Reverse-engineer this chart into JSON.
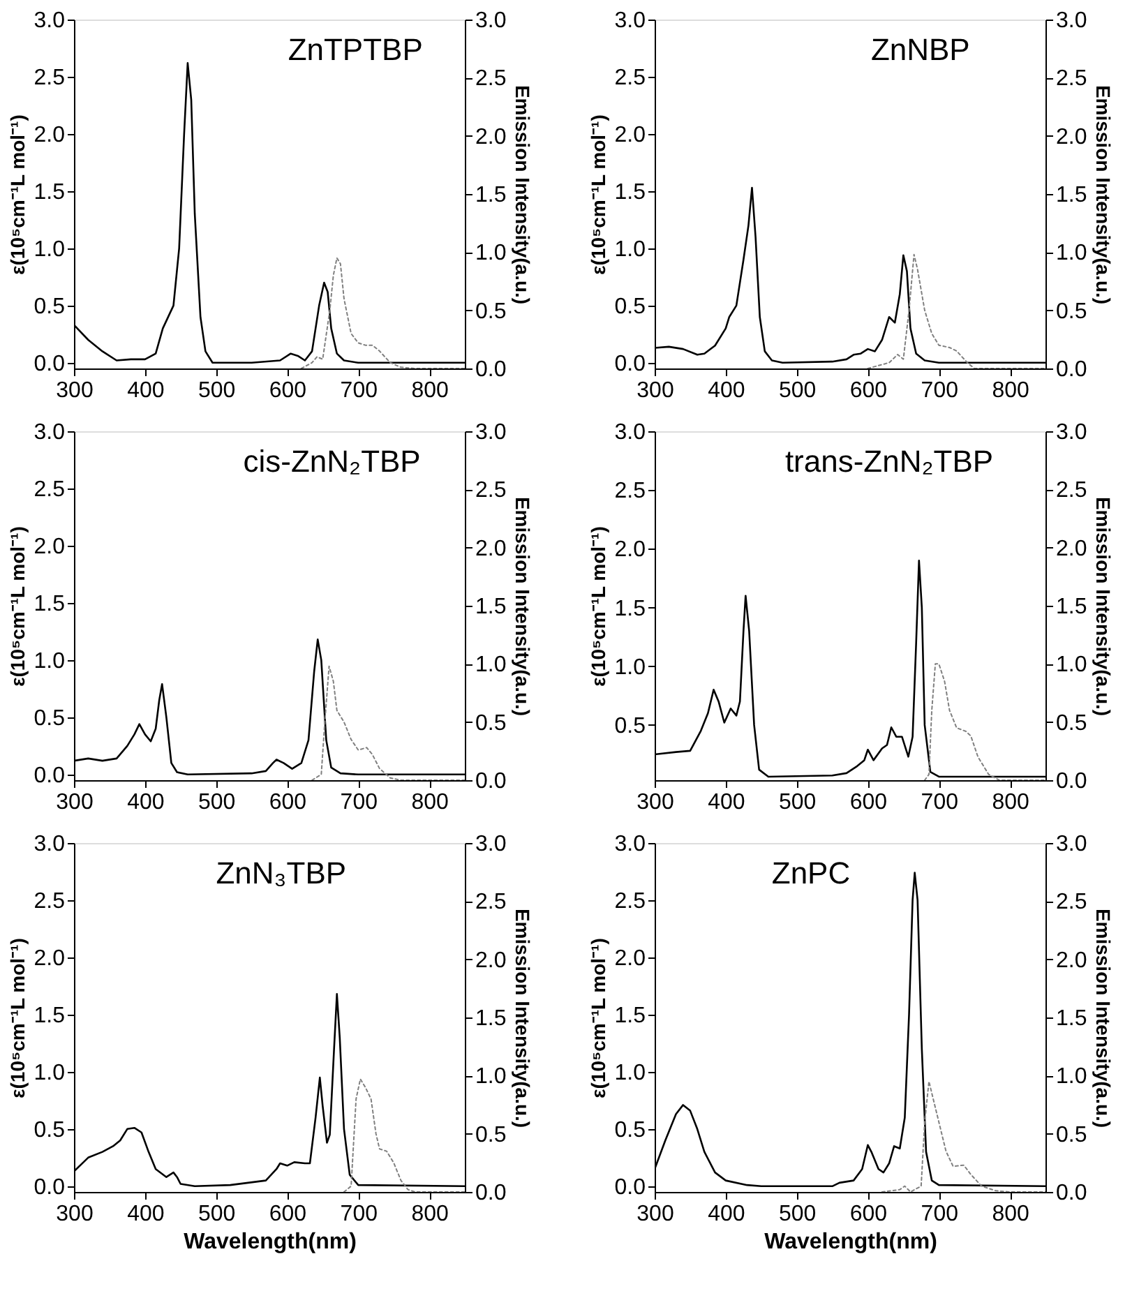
{
  "chart_data": [
    {
      "type": "line",
      "title": "ZnTPTBP",
      "ylabel": "ε(10⁵cm⁻¹L mol⁻¹)",
      "y2label": "Emission Intensity(a.u.)",
      "xlim": [
        300,
        850
      ],
      "xticks": [
        300,
        400,
        500,
        600,
        700,
        800
      ],
      "ylim": [
        -0.05,
        3.0
      ],
      "yticks": [
        {
          "value": 0,
          "label": "0.0"
        },
        0.5,
        {
          "value": 1,
          "label": "1.0"
        },
        1.5,
        {
          "value": 2,
          "label": "2.0"
        },
        2.5,
        {
          "value": 3,
          "label": "3.0"
        }
      ],
      "y2lim": [
        0.0,
        3.0
      ],
      "y2ticks": [
        {
          "value": 0,
          "label": "0.0"
        },
        0.5,
        {
          "value": 1,
          "label": "1.0"
        },
        1.5,
        {
          "value": 2,
          "label": "2.0"
        },
        2.5,
        {
          "value": 3,
          "label": "3.0"
        }
      ],
      "grid": false,
      "series": [
        {
          "color": "#000000",
          "line_style": "solid",
          "x": [
            300,
            320,
            340,
            360,
            380,
            400,
            415,
            425,
            440,
            448,
            455,
            460,
            465,
            470,
            478,
            485,
            495,
            550,
            590,
            605,
            615,
            625,
            635,
            645,
            652,
            657,
            662,
            670,
            680,
            700,
            850
          ],
          "values": [
            0.33,
            0.2,
            0.1,
            0.02,
            0.03,
            0.03,
            0.08,
            0.3,
            0.5,
            1.0,
            2.0,
            2.62,
            2.3,
            1.3,
            0.4,
            0.1,
            0.0,
            0.0,
            0.02,
            0.08,
            0.06,
            0.02,
            0.1,
            0.5,
            0.7,
            0.62,
            0.3,
            0.08,
            0.02,
            0.0,
            0.0
          ]
        },
        {
          "color": "#808080",
          "line_style": "dotted",
          "axis": "y2",
          "x": [
            620,
            635,
            642,
            650,
            660,
            665,
            670,
            675,
            680,
            690,
            700,
            710,
            720,
            730,
            745,
            760,
            780,
            850
          ],
          "values": [
            0.0,
            0.05,
            0.1,
            0.08,
            0.5,
            0.8,
            0.95,
            0.9,
            0.6,
            0.3,
            0.22,
            0.2,
            0.2,
            0.15,
            0.05,
            0.01,
            0.0,
            0.0
          ]
        }
      ]
    },
    {
      "type": "line",
      "title": "ZnNBP",
      "ylabel": "ε(10⁵cm⁻¹L mol⁻¹)",
      "y2label": "Emission Intensity(a.u.)",
      "xlim": [
        300,
        850
      ],
      "xticks": [
        300,
        400,
        500,
        600,
        700,
        800
      ],
      "ylim": [
        -0.05,
        3.0
      ],
      "yticks": [
        {
          "value": 0,
          "label": "0.0"
        },
        0.5,
        {
          "value": 1,
          "label": "1.0"
        },
        1.5,
        {
          "value": 2,
          "label": "2.0"
        },
        2.5,
        {
          "value": 3,
          "label": "3.0"
        }
      ],
      "y2lim": [
        0.0,
        3.0
      ],
      "y2ticks": [
        {
          "value": 0,
          "label": "0.0"
        },
        0.5,
        {
          "value": 1,
          "label": "1.0"
        },
        1.5,
        {
          "value": 2,
          "label": "2.0"
        },
        2.5,
        {
          "value": 3,
          "label": "3.0"
        }
      ],
      "grid": false,
      "series": [
        {
          "color": "#000000",
          "line_style": "solid",
          "x": [
            300,
            320,
            340,
            360,
            370,
            385,
            400,
            405,
            415,
            425,
            432,
            437,
            442,
            448,
            455,
            465,
            480,
            550,
            570,
            580,
            590,
            600,
            610,
            620,
            630,
            638,
            645,
            650,
            655,
            660,
            668,
            680,
            700,
            850
          ],
          "values": [
            0.13,
            0.14,
            0.12,
            0.07,
            0.08,
            0.15,
            0.3,
            0.4,
            0.5,
            0.9,
            1.2,
            1.53,
            1.1,
            0.4,
            0.1,
            0.02,
            0.0,
            0.01,
            0.03,
            0.07,
            0.08,
            0.12,
            0.1,
            0.2,
            0.4,
            0.35,
            0.6,
            0.94,
            0.8,
            0.3,
            0.08,
            0.02,
            0.0,
            0.0
          ]
        },
        {
          "color": "#808080",
          "line_style": "dotted",
          "axis": "y2",
          "x": [
            600,
            630,
            642,
            650,
            658,
            665,
            670,
            680,
            690,
            700,
            715,
            725,
            740,
            750,
            850
          ],
          "values": [
            0.0,
            0.05,
            0.12,
            0.08,
            0.5,
            0.98,
            0.85,
            0.5,
            0.3,
            0.2,
            0.18,
            0.15,
            0.05,
            0.0,
            0.0
          ]
        }
      ]
    },
    {
      "type": "line",
      "title": "cis-ZnN₂TBP",
      "ylabel": "ε(10⁵cm⁻¹L mol⁻¹)",
      "y2label": "Emission Intensity(a.u.)",
      "xlim": [
        300,
        850
      ],
      "xticks": [
        300,
        400,
        500,
        600,
        700,
        800
      ],
      "ylim": [
        -0.05,
        3.0
      ],
      "yticks": [
        {
          "value": 0,
          "label": "0.0"
        },
        0.5,
        {
          "value": 1,
          "label": "1.0"
        },
        1.5,
        {
          "value": 2,
          "label": "2.0"
        },
        2.5,
        {
          "value": 3,
          "label": "3.0"
        }
      ],
      "y2lim": [
        0.0,
        3.0
      ],
      "y2ticks": [
        {
          "value": 0,
          "label": "0.0"
        },
        0.5,
        {
          "value": 1,
          "label": "1.0"
        },
        1.5,
        {
          "value": 2,
          "label": "2.0"
        },
        2.5,
        {
          "value": 3,
          "label": "3.0"
        }
      ],
      "grid": false,
      "series": [
        {
          "color": "#000000",
          "line_style": "solid",
          "x": [
            300,
            320,
            340,
            360,
            375,
            385,
            392,
            400,
            408,
            415,
            420,
            424,
            430,
            437,
            445,
            460,
            550,
            570,
            580,
            585,
            595,
            607,
            620,
            630,
            638,
            643,
            648,
            655,
            662,
            675,
            700,
            850
          ],
          "values": [
            0.12,
            0.14,
            0.12,
            0.14,
            0.25,
            0.35,
            0.44,
            0.35,
            0.29,
            0.4,
            0.65,
            0.79,
            0.5,
            0.1,
            0.02,
            0.0,
            0.01,
            0.03,
            0.1,
            0.13,
            0.1,
            0.05,
            0.1,
            0.3,
            0.9,
            1.18,
            1.0,
            0.3,
            0.06,
            0.01,
            0.0,
            0.0
          ]
        },
        {
          "color": "#808080",
          "line_style": "dotted",
          "axis": "y2",
          "x": [
            635,
            648,
            653,
            659,
            665,
            670,
            680,
            690,
            700,
            712,
            720,
            730,
            745,
            760,
            850
          ],
          "values": [
            0.0,
            0.05,
            0.5,
            0.98,
            0.85,
            0.6,
            0.5,
            0.35,
            0.26,
            0.28,
            0.22,
            0.1,
            0.02,
            0.0,
            0.0
          ]
        }
      ]
    },
    {
      "type": "line",
      "title": "trans-ZnN₂TBP",
      "ylabel": "ε(10⁵cm⁻¹L mol⁻¹)",
      "y2label": "Emission Intensity(a.u.)",
      "xlim": [
        300,
        850
      ],
      "xticks": [
        300,
        400,
        500,
        600,
        700,
        800
      ],
      "ylim": [
        0.03,
        3.0
      ],
      "yticks": [
        0.5,
        {
          "value": 1,
          "label": "1.0"
        },
        1.5,
        {
          "value": 2,
          "label": "2.0"
        },
        2.5,
        {
          "value": 3,
          "label": "3.0"
        }
      ],
      "y2lim": [
        0.0,
        3.0
      ],
      "y2ticks": [
        {
          "value": 0,
          "label": "0.0"
        },
        0.5,
        {
          "value": 1,
          "label": "1.0"
        },
        1.5,
        {
          "value": 2,
          "label": "2.0"
        },
        2.5,
        {
          "value": 3,
          "label": "3.0"
        }
      ],
      "grid": false,
      "series": [
        {
          "color": "#000000",
          "line_style": "solid",
          "x": [
            300,
            330,
            350,
            365,
            375,
            383,
            390,
            398,
            407,
            415,
            420,
            425,
            428,
            433,
            440,
            447,
            460,
            550,
            570,
            585,
            595,
            600,
            608,
            620,
            627,
            633,
            640,
            648,
            657,
            663,
            668,
            672,
            676,
            680,
            688,
            700,
            850
          ],
          "values": [
            0.25,
            0.27,
            0.28,
            0.45,
            0.6,
            0.8,
            0.7,
            0.52,
            0.64,
            0.58,
            0.7,
            1.3,
            1.6,
            1.3,
            0.5,
            0.12,
            0.06,
            0.07,
            0.09,
            0.15,
            0.2,
            0.29,
            0.2,
            0.3,
            0.33,
            0.48,
            0.4,
            0.4,
            0.23,
            0.4,
            1.2,
            1.9,
            1.5,
            0.5,
            0.1,
            0.06,
            0.06
          ]
        },
        {
          "color": "#808080",
          "line_style": "dotted",
          "axis": "y2",
          "x": [
            680,
            686,
            690,
            695,
            700,
            708,
            715,
            725,
            738,
            745,
            755,
            770,
            785,
            850
          ],
          "values": [
            0.0,
            0.05,
            0.6,
            1.0,
            1.0,
            0.85,
            0.6,
            0.45,
            0.42,
            0.38,
            0.2,
            0.05,
            0.0,
            0.0
          ]
        }
      ]
    },
    {
      "type": "line",
      "title": "ZnN₃TBP",
      "xlabel": "Wavelength(nm)",
      "ylabel": "ε(10⁵cm⁻¹L mol⁻¹)",
      "y2label": "Emission Intensity(a.u.)",
      "xlim": [
        300,
        850
      ],
      "xticks": [
        300,
        400,
        500,
        600,
        700,
        800
      ],
      "ylim": [
        -0.05,
        3.0
      ],
      "yticks": [
        {
          "value": 0,
          "label": "0.0"
        },
        0.5,
        {
          "value": 1,
          "label": "1.0"
        },
        1.5,
        {
          "value": 2,
          "label": "2.0"
        },
        2.5,
        {
          "value": 3,
          "label": "3.0"
        }
      ],
      "y2lim": [
        0.0,
        3.0
      ],
      "y2ticks": [
        {
          "value": 0,
          "label": "0.0"
        },
        0.5,
        {
          "value": 1,
          "label": "1.0"
        },
        1.5,
        {
          "value": 2,
          "label": "2.0"
        },
        2.5,
        {
          "value": 3,
          "label": "3.0"
        }
      ],
      "grid": false,
      "series": [
        {
          "color": "#000000",
          "line_style": "solid",
          "x": [
            300,
            320,
            340,
            355,
            365,
            375,
            385,
            395,
            405,
            415,
            430,
            440,
            445,
            450,
            470,
            520,
            570,
            585,
            590,
            600,
            610,
            625,
            632,
            640,
            646,
            650,
            656,
            660,
            666,
            670,
            674,
            680,
            688,
            700,
            850
          ],
          "values": [
            0.13,
            0.25,
            0.3,
            0.35,
            0.4,
            0.5,
            0.51,
            0.47,
            0.3,
            0.15,
            0.08,
            0.12,
            0.08,
            0.02,
            0.0,
            0.01,
            0.05,
            0.15,
            0.2,
            0.18,
            0.21,
            0.2,
            0.2,
            0.6,
            0.95,
            0.7,
            0.38,
            0.45,
            1.2,
            1.68,
            1.3,
            0.5,
            0.1,
            0.01,
            0.0
          ]
        },
        {
          "color": "#808080",
          "line_style": "dotted",
          "axis": "y2",
          "x": [
            680,
            690,
            697,
            703,
            710,
            718,
            725,
            730,
            740,
            750,
            760,
            770,
            780,
            850
          ],
          "values": [
            0.0,
            0.05,
            0.8,
            0.97,
            0.9,
            0.8,
            0.5,
            0.37,
            0.35,
            0.25,
            0.1,
            0.02,
            0.0,
            0.0
          ]
        }
      ]
    },
    {
      "type": "line",
      "title": "ZnPC",
      "xlabel": "Wavelength(nm)",
      "ylabel": "ε(10⁵cm⁻¹L mol⁻¹)",
      "y2label": "Emission Intensity(a.u.)",
      "xlim": [
        300,
        850
      ],
      "xticks": [
        300,
        400,
        500,
        600,
        700,
        800
      ],
      "ylim": [
        -0.05,
        3.0
      ],
      "yticks": [
        {
          "value": 0,
          "label": "0.0"
        },
        0.5,
        {
          "value": 1,
          "label": "1.0"
        },
        1.5,
        {
          "value": 2,
          "label": "2.0"
        },
        2.5,
        {
          "value": 3,
          "label": "3.0"
        }
      ],
      "y2lim": [
        0.0,
        3.0
      ],
      "y2ticks": [
        {
          "value": 0,
          "label": "0.0"
        },
        0.5,
        {
          "value": 1,
          "label": "1.0"
        },
        1.5,
        {
          "value": 2,
          "label": "2.0"
        },
        2.5,
        {
          "value": 3,
          "label": "3.0"
        }
      ],
      "grid": false,
      "series": [
        {
          "color": "#000000",
          "line_style": "solid",
          "x": [
            300,
            315,
            330,
            340,
            350,
            360,
            370,
            385,
            400,
            430,
            450,
            550,
            560,
            580,
            592,
            600,
            605,
            615,
            622,
            630,
            637,
            645,
            652,
            658,
            663,
            666,
            670,
            676,
            682,
            690,
            700,
            850
          ],
          "values": [
            0.15,
            0.4,
            0.63,
            0.71,
            0.66,
            0.5,
            0.3,
            0.12,
            0.05,
            0.01,
            0.0,
            0.0,
            0.03,
            0.05,
            0.15,
            0.36,
            0.3,
            0.15,
            0.12,
            0.2,
            0.35,
            0.33,
            0.6,
            1.5,
            2.5,
            2.74,
            2.5,
            1.2,
            0.3,
            0.05,
            0.01,
            0.0
          ]
        },
        {
          "color": "#808080",
          "line_style": "dotted",
          "axis": "y2",
          "x": [
            620,
            645,
            652,
            660,
            675,
            680,
            686,
            692,
            700,
            710,
            720,
            735,
            745,
            760,
            780,
            800,
            850
          ],
          "values": [
            0.0,
            0.02,
            0.05,
            0.0,
            0.05,
            0.6,
            0.95,
            0.8,
            0.6,
            0.35,
            0.22,
            0.23,
            0.15,
            0.05,
            0.01,
            0.0,
            0.0
          ]
        }
      ]
    }
  ]
}
